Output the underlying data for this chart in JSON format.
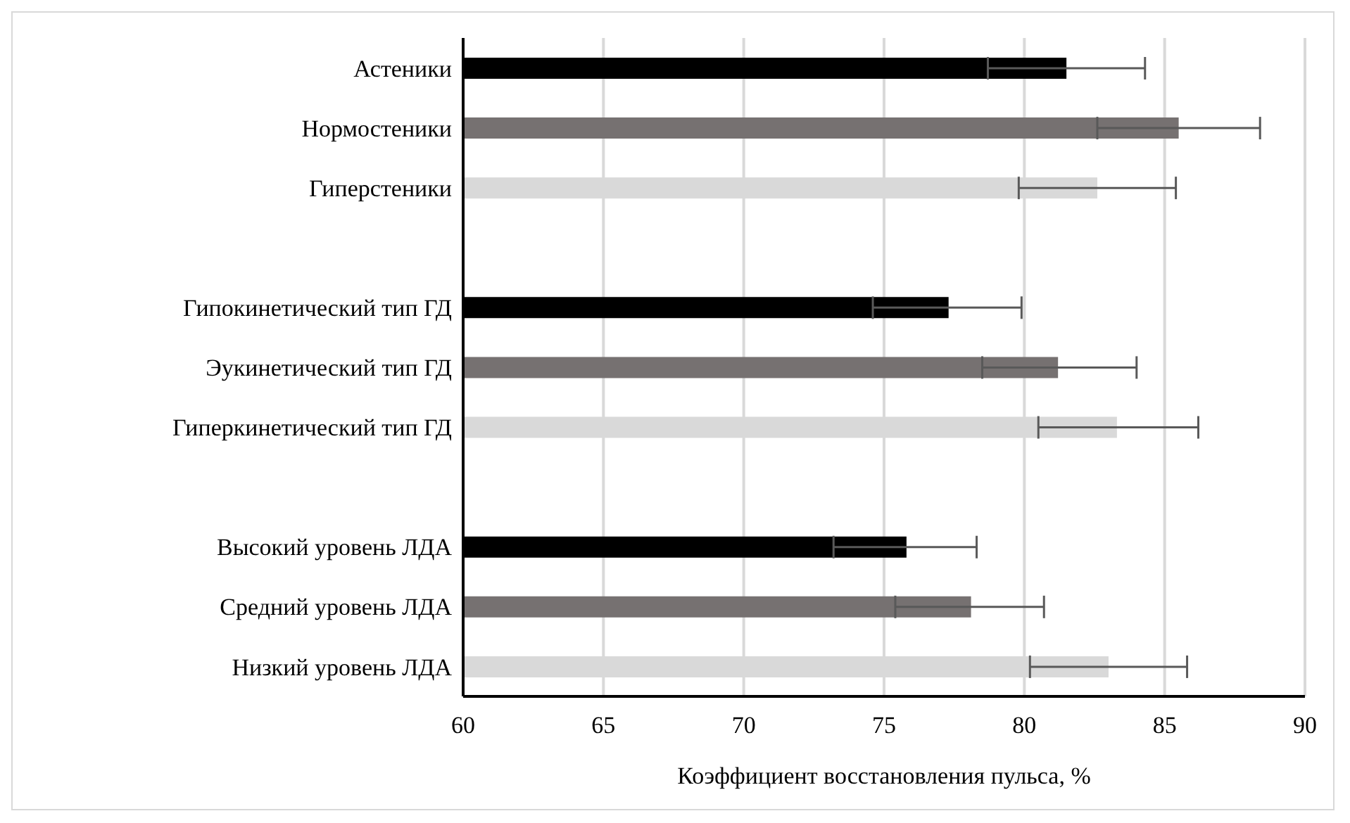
{
  "chart_data": {
    "type": "bar",
    "orientation": "horizontal",
    "xlabel": "Коэффициент восстановления пульса, %",
    "categories": [
      "Астеники",
      "Нормостеники",
      "Гиперстеники",
      null,
      "Гипокинетический тип ГД",
      "Эукинетический тип ГД",
      "Гиперкинетический тип ГД",
      null,
      "Высокий уровень ЛДА",
      "Средний уровень ЛДА",
      "Низкий уровень ЛДА"
    ],
    "values": [
      81.5,
      85.5,
      82.6,
      null,
      77.3,
      81.2,
      83.3,
      null,
      75.8,
      78.1,
      83.0
    ],
    "colors": [
      "#000000",
      "#767171",
      "#d9d9d9",
      null,
      "#000000",
      "#767171",
      "#d9d9d9",
      null,
      "#000000",
      "#767171",
      "#d9d9d9"
    ],
    "errors": [
      [
        78.7,
        84.3
      ],
      [
        82.6,
        88.4
      ],
      [
        79.8,
        85.4
      ],
      null,
      [
        74.6,
        79.9
      ],
      [
        78.5,
        84.0
      ],
      [
        80.5,
        86.2
      ],
      null,
      [
        73.2,
        78.3
      ],
      [
        75.4,
        80.7
      ],
      [
        80.2,
        85.8
      ]
    ],
    "xlim": [
      60,
      90
    ],
    "xticks": [
      60,
      65,
      70,
      75,
      80,
      85,
      90
    ],
    "grid": "x",
    "legend": false
  }
}
